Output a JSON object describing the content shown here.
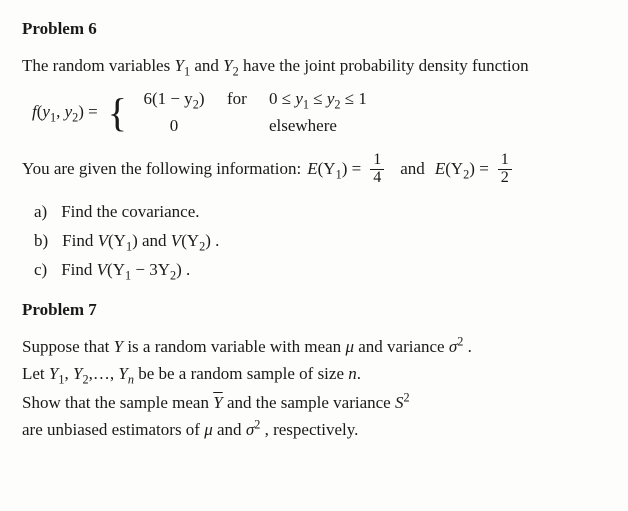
{
  "p6": {
    "heading": "Problem 6",
    "intro_a": "The random variables ",
    "Y1": "Y",
    "Y1s": "1",
    "intro_b": " and ",
    "Y2": "Y",
    "Y2s": "2",
    "intro_c": " have the joint probability density function",
    "lhs_f": "f",
    "lhs_open": "(",
    "lhs_y1": "y",
    "lhs_y1s": "1",
    "lhs_comma": ", ",
    "lhs_y2": "y",
    "lhs_y2s": "2",
    "lhs_close": ")",
    "lhs_eq": " =",
    "piece1_val": "6(1 − y",
    "piece1_sub": "2",
    "piece1_valb": ")",
    "piece1_for": "for",
    "piece1_cond_a": "0 ≤ ",
    "piece1_cond_y1": "y",
    "piece1_cond_y1s": "1",
    "piece1_cond_b": " ≤ ",
    "piece1_cond_y2": "y",
    "piece1_cond_y2s": "2",
    "piece1_cond_c": " ≤ 1",
    "piece2_val": "0",
    "piece2_for": "elsewhere",
    "given_a": "You are given the following information:  ",
    "EY1": "E",
    "EY1p": "(Y",
    "EY1s": "1",
    "EY1c": ") =",
    "frac1n": "1",
    "frac1d": "4",
    "and": "and",
    "EY2": "E",
    "EY2p": "(Y",
    "EY2s": "2",
    "EY2c": ") =",
    "frac2n": "1",
    "frac2d": "2",
    "a_lbl": "a)",
    "a_txt": "Find the covariance.",
    "b_lbl": "b)",
    "b_txt_a": "Find ",
    "b_V1": "V",
    "b_V1p": "(Y",
    "b_V1s": "1",
    "b_V1c": ")",
    "b_txt_b": " and ",
    "b_V2": "V",
    "b_V2p": "(Y",
    "b_V2s": "2",
    "b_V2c": ") .",
    "c_lbl": "c)",
    "c_txt_a": "Find ",
    "c_V": "V",
    "c_Vp": "(Y",
    "c_Vs1": "1",
    "c_mid": " − 3Y",
    "c_Vs2": "2",
    "c_Vc": ") ."
  },
  "p7": {
    "heading": "Problem 7",
    "l1a": "Suppose that ",
    "l1Y": "Y",
    "l1b": " is a random variable with mean ",
    "l1mu": "μ",
    "l1c": " and variance ",
    "l1sig": "σ",
    "l1exp": "2",
    "l1d": " .",
    "l2a": "Let ",
    "l2Y1": "Y",
    "l2s1": "1",
    "l2c1": ", ",
    "l2Y2": "Y",
    "l2s2": "2",
    "l2c2": ",…, ",
    "l2Yn": "Y",
    "l2sn": "n",
    "l2b": " be be a random sample of size ",
    "l2n": "n",
    "l2d": ".",
    "l3a": "Show that the sample mean ",
    "l3Y": "Y",
    "l3b": " and the sample variance ",
    "l3S": "S",
    "l3exp": "2",
    "l4a": "are unbiased estimators of ",
    "l4mu": "μ",
    "l4b": " and ",
    "l4sig": "σ",
    "l4exp": "2",
    "l4c": " , respectively."
  }
}
